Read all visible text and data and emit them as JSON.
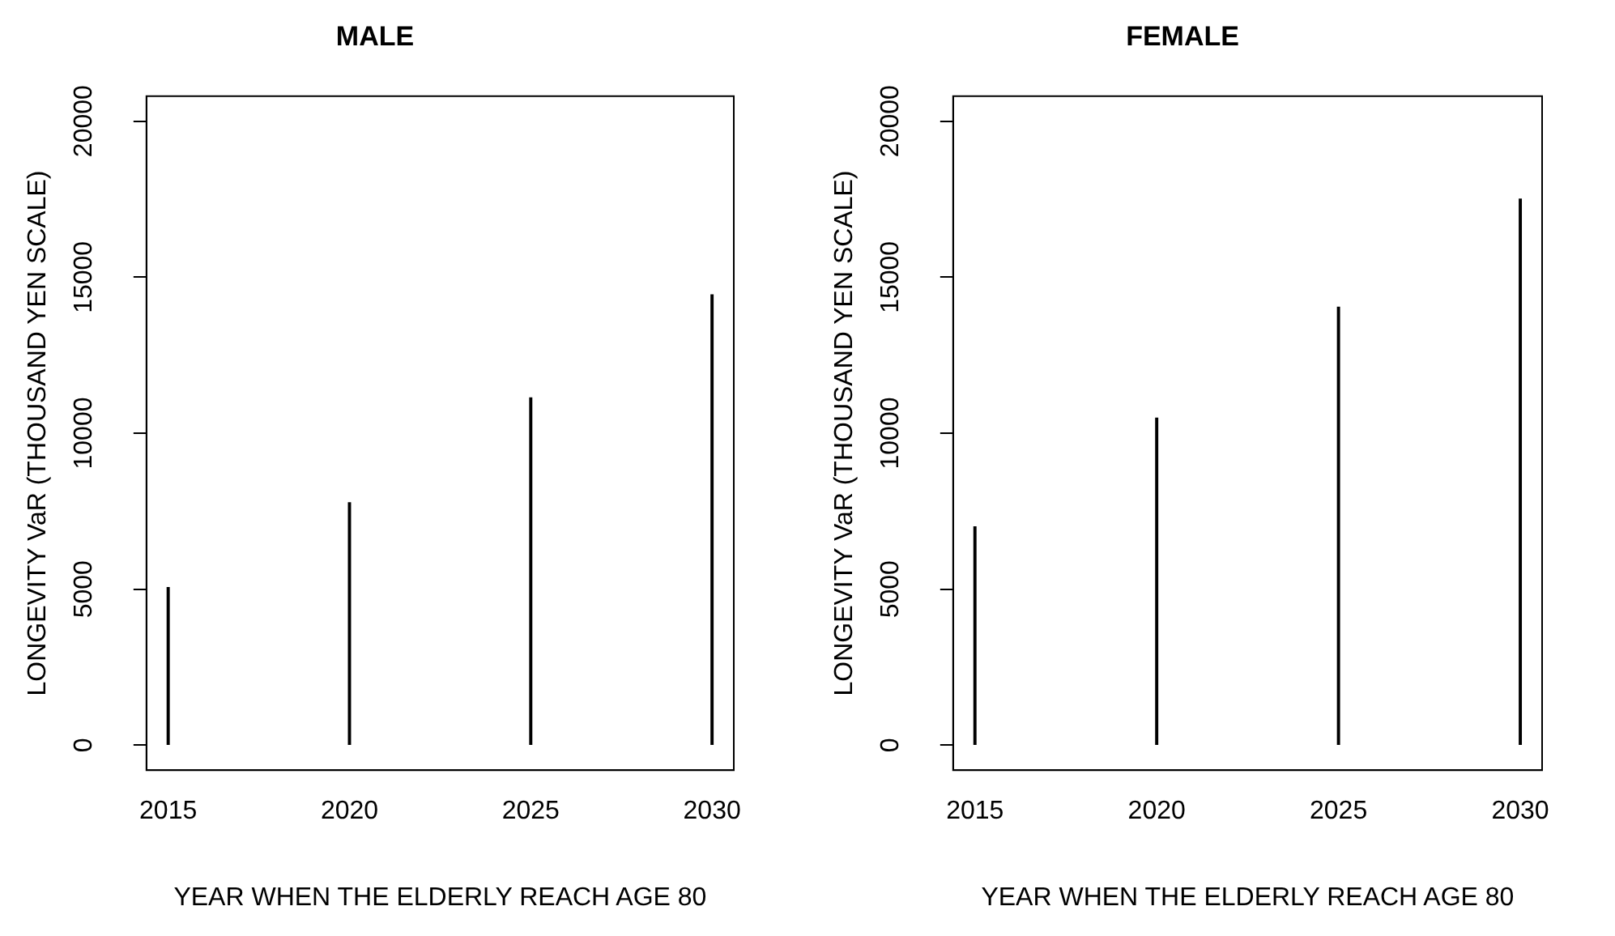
{
  "chart_data": [
    {
      "type": "bar",
      "title": "MALE",
      "xlabel": "YEAR WHEN THE ELDERLY REACH AGE 80",
      "ylabel": "LONGEVITY VaR (THOUSAND YEN SCALE)",
      "x": [
        2015,
        2020,
        2025,
        2030
      ],
      "values": [
        5050,
        7770,
        11130,
        14430
      ],
      "color": "#000000",
      "xlim": [
        2014.4,
        2030.6
      ],
      "xticks": [
        2015,
        2020,
        2025,
        2030
      ],
      "ylim": [
        -800,
        20800
      ],
      "yticks": [
        0,
        5000,
        10000,
        15000,
        20000
      ]
    },
    {
      "type": "bar",
      "title": "FEMALE",
      "xlabel": "YEAR WHEN THE ELDERLY REACH AGE 80",
      "ylabel": "LONGEVITY VaR (THOUSAND YEN SCALE)",
      "x": [
        2015,
        2020,
        2025,
        2030
      ],
      "values": [
        7000,
        10480,
        14040,
        17500
      ],
      "color": "#000000",
      "xlim": [
        2014.4,
        2030.6
      ],
      "xticks": [
        2015,
        2020,
        2025,
        2030
      ],
      "ylim": [
        -800,
        20800
      ],
      "yticks": [
        0,
        5000,
        10000,
        15000,
        20000
      ]
    }
  ]
}
